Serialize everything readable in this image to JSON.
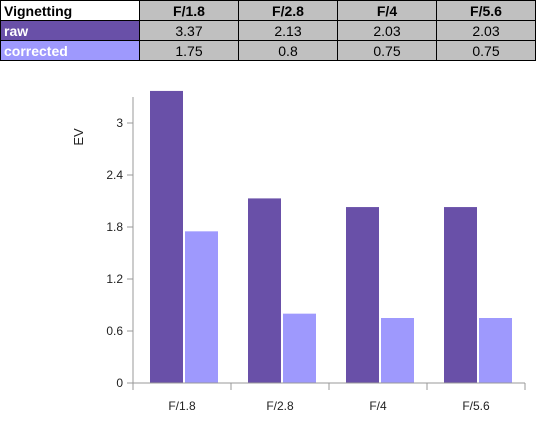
{
  "table": {
    "corner_label": "Vignetting",
    "columns": [
      "F/1.8",
      "F/2.8",
      "F/4",
      "F/5.6"
    ],
    "rows": [
      {
        "label": "raw",
        "values": [
          "3.37",
          "2.13",
          "2.03",
          "2.03"
        ],
        "color": "#6950a8",
        "text_color": "#ffffff"
      },
      {
        "label": "corrected",
        "values": [
          "1.75",
          "0.8",
          "0.75",
          "0.75"
        ],
        "color": "#9e99fd",
        "text_color": "#ffffff"
      }
    ]
  },
  "chart_data": {
    "type": "bar",
    "categories": [
      "F/1.8",
      "F/2.8",
      "F/4",
      "F/5.6"
    ],
    "series": [
      {
        "name": "raw",
        "values": [
          3.37,
          2.13,
          2.03,
          2.03
        ],
        "color": "#6950a8"
      },
      {
        "name": "corrected",
        "values": [
          1.75,
          0.8,
          0.75,
          0.75
        ],
        "color": "#9e99fd"
      }
    ],
    "title": "",
    "xlabel": "",
    "ylabel": "EV",
    "ylim": [
      0,
      3.3
    ],
    "yticks": [
      0,
      0.6,
      1.2,
      1.8,
      2.4,
      3
    ],
    "ytick_labels": [
      "0",
      "0.6",
      "1.2",
      "1.8",
      "2.4",
      "3"
    ],
    "grid": false,
    "legend": "none"
  }
}
